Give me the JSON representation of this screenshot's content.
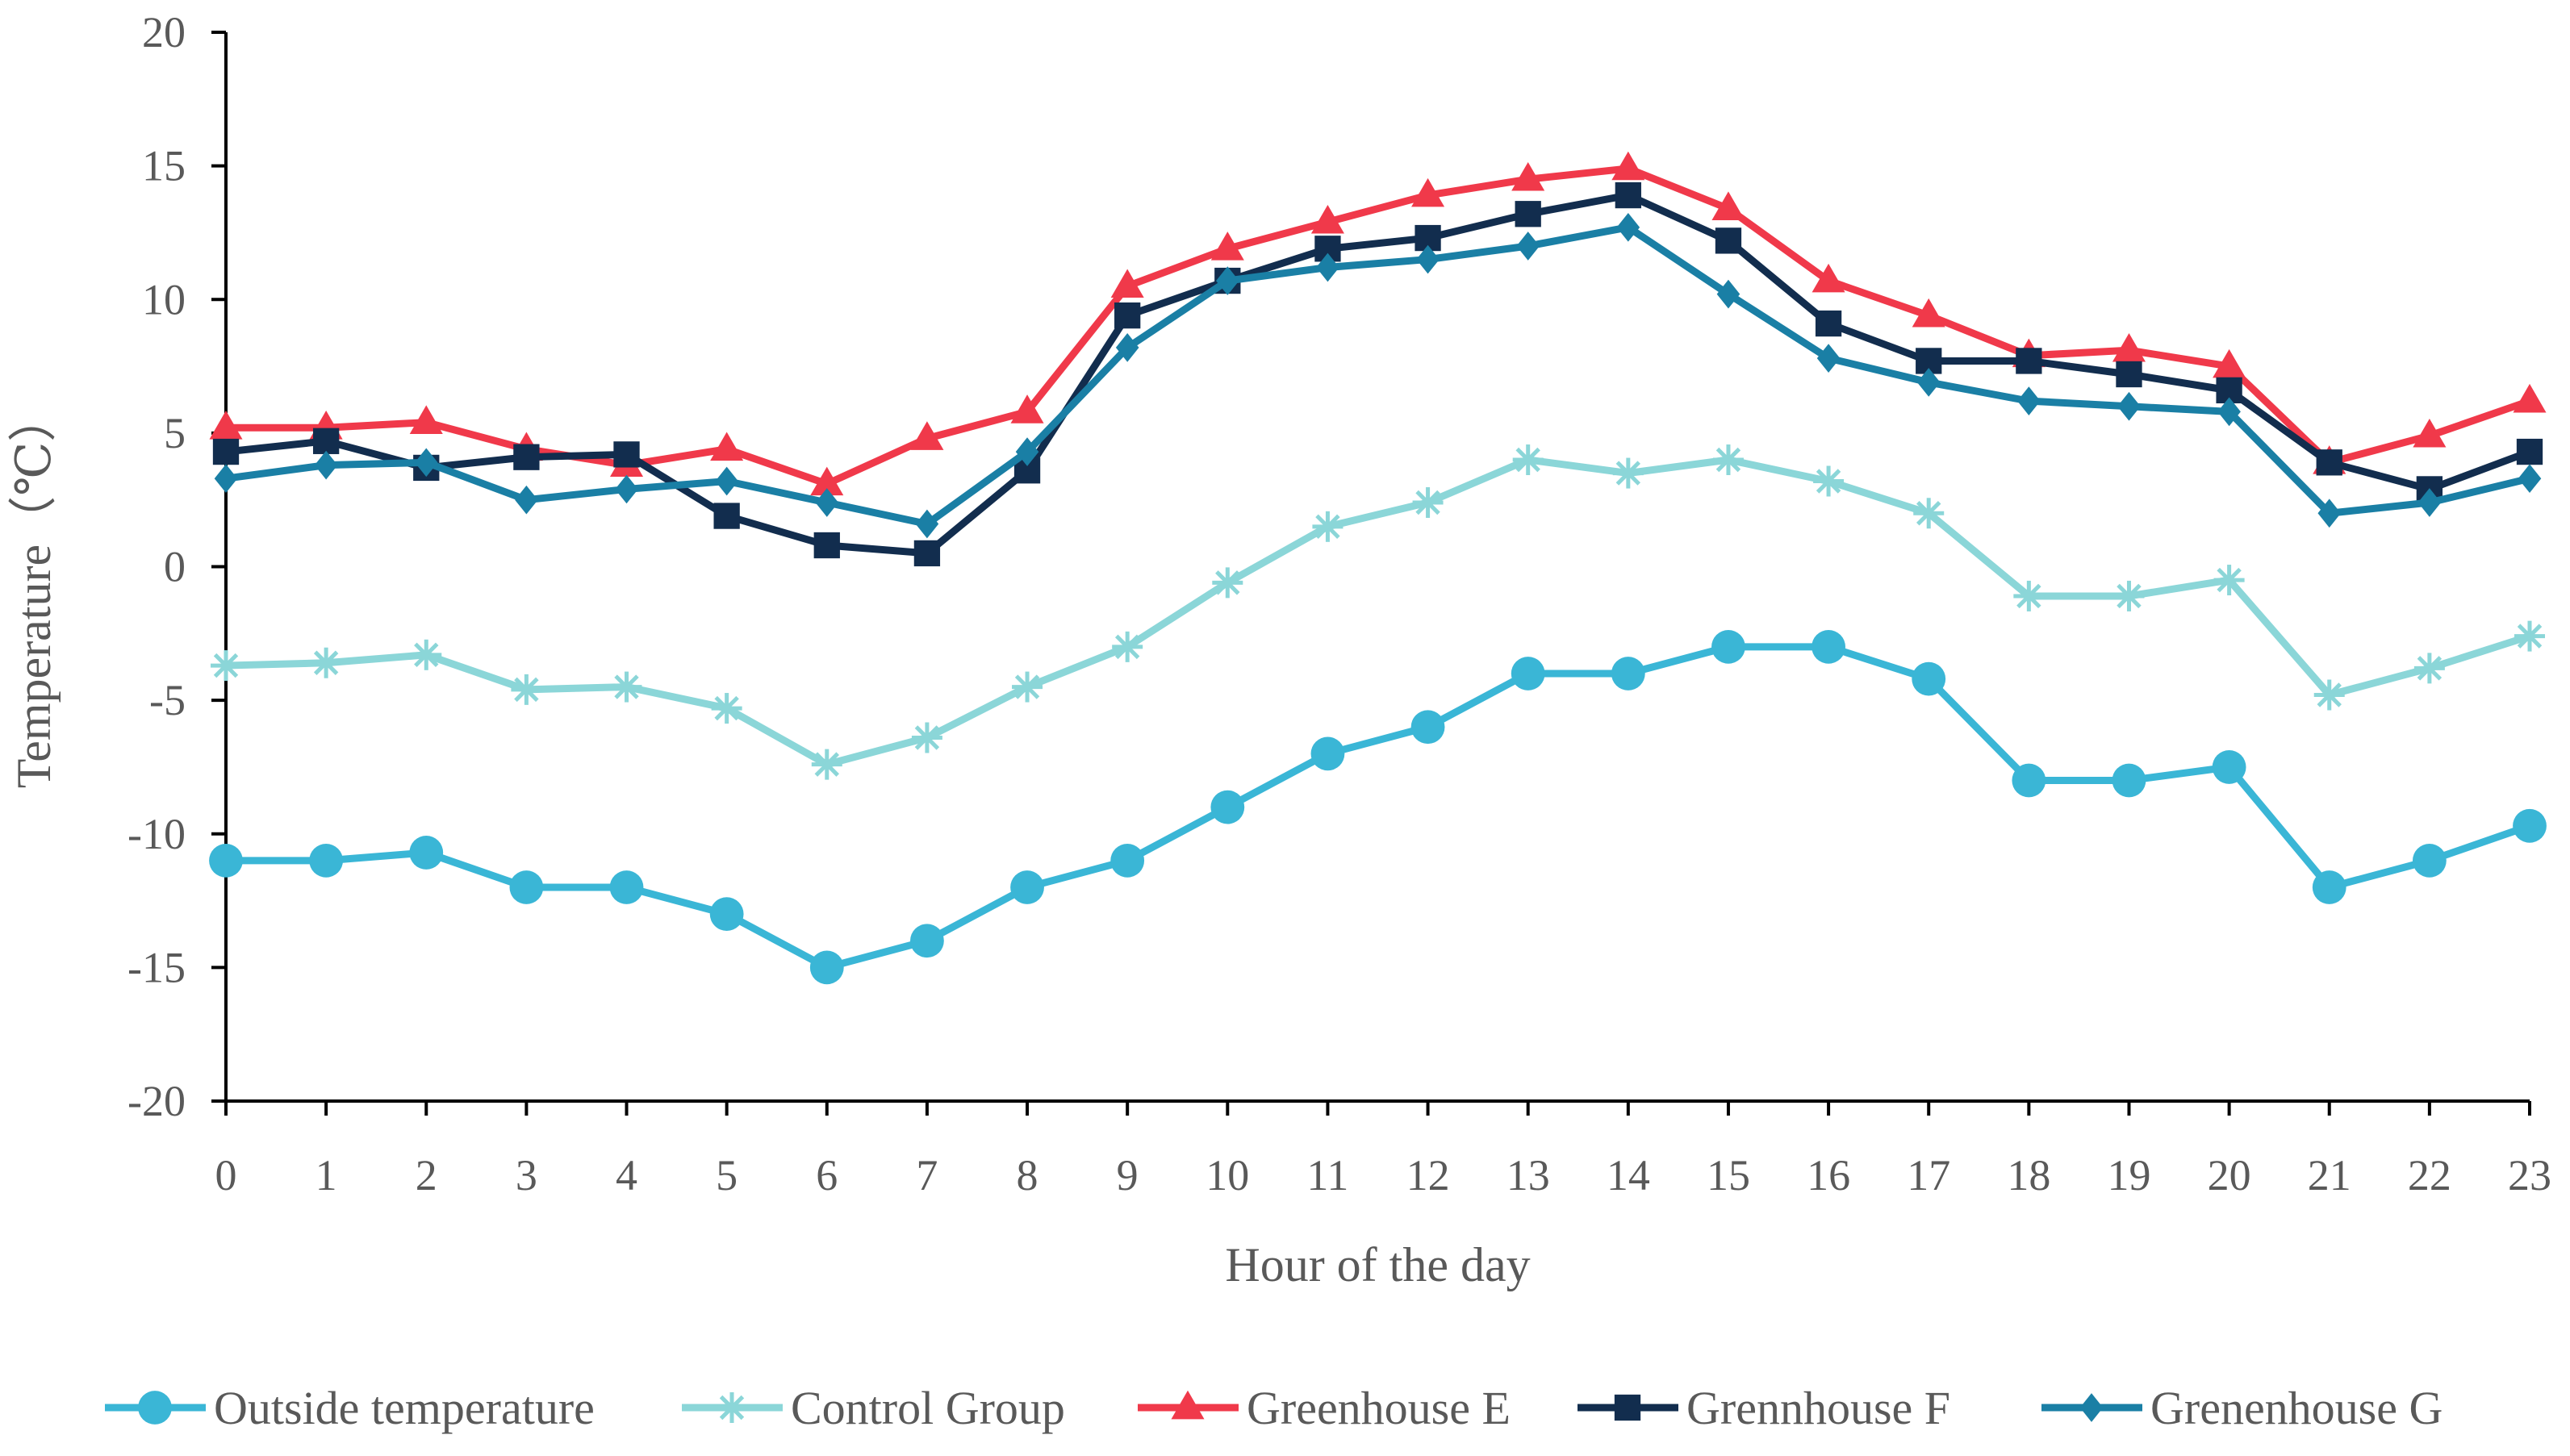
{
  "chart_data": {
    "type": "line",
    "title": "",
    "xlabel": "Hour of the day",
    "ylabel": "Temperature（℃）",
    "x": [
      0,
      1,
      2,
      3,
      4,
      5,
      6,
      7,
      8,
      9,
      10,
      11,
      12,
      13,
      14,
      15,
      16,
      17,
      18,
      19,
      20,
      21,
      22,
      23
    ],
    "x_tick_labels": [
      "0",
      "1",
      "2",
      "3",
      "4",
      "5",
      "6",
      "7",
      "8",
      "9",
      "10",
      "11",
      "12",
      "13",
      "14",
      "15",
      "16",
      "17",
      "18",
      "19",
      "20",
      "21",
      "22",
      "23"
    ],
    "ylim": [
      -20,
      20
    ],
    "y_ticks": [
      -20,
      -15,
      -10,
      -5,
      0,
      5,
      10,
      15,
      20
    ],
    "y_tick_labels": [
      "-20",
      "-15",
      "-10",
      "-5",
      "0",
      "5",
      "10",
      "15",
      "20"
    ],
    "grid": false,
    "legend_position": "bottom",
    "series": [
      {
        "name": "Outside temperature",
        "color": "#3ab6d6",
        "marker": "circle",
        "values": [
          -11,
          -11,
          -10.7,
          -12,
          -12,
          -13,
          -15,
          -14,
          -12,
          -11,
          -9,
          -7,
          -6,
          -4,
          -4,
          -3,
          -3,
          -4.2,
          -8,
          -8,
          -7.5,
          -12,
          -11,
          -9.7
        ]
      },
      {
        "name": "Control Group",
        "color": "#8bd6d8",
        "marker": "asterisk",
        "values": [
          -3.7,
          -3.6,
          -3.3,
          -4.6,
          -4.5,
          -5.3,
          -7.4,
          -6.4,
          -4.5,
          -3,
          -0.6,
          1.5,
          2.4,
          4,
          3.5,
          4,
          3.2,
          2,
          -1.1,
          -1.1,
          -0.5,
          -4.8,
          -3.8,
          -2.6
        ]
      },
      {
        "name": "Greenhouse E",
        "color": "#f0394a",
        "marker": "triangle",
        "values": [
          5.2,
          5.2,
          5.4,
          4.4,
          3.8,
          4.4,
          3.1,
          4.8,
          5.8,
          10.5,
          11.9,
          12.9,
          13.9,
          14.5,
          14.9,
          13.4,
          10.7,
          9.4,
          7.9,
          8.1,
          7.5,
          3.9,
          4.9,
          6.2
        ]
      },
      {
        "name": "Grennhouse F",
        "color": "#122d4e",
        "marker": "square",
        "values": [
          4.3,
          4.7,
          3.7,
          4.1,
          4.2,
          1.9,
          0.8,
          0.5,
          3.6,
          9.4,
          10.7,
          11.9,
          12.3,
          13.2,
          13.9,
          12.2,
          9.1,
          7.7,
          7.7,
          7.2,
          6.6,
          3.9,
          2.9,
          4.3
        ]
      },
      {
        "name": "Grenenhouse G",
        "color": "#1a7fa5",
        "marker": "diamond",
        "values": [
          3.3,
          3.8,
          3.9,
          2.5,
          2.9,
          3.2,
          2.4,
          1.6,
          4.3,
          8.2,
          10.7,
          11.2,
          11.5,
          12,
          12.7,
          10.2,
          7.8,
          6.9,
          6.2,
          6,
          5.8,
          2,
          2.4,
          3.3
        ]
      }
    ]
  }
}
